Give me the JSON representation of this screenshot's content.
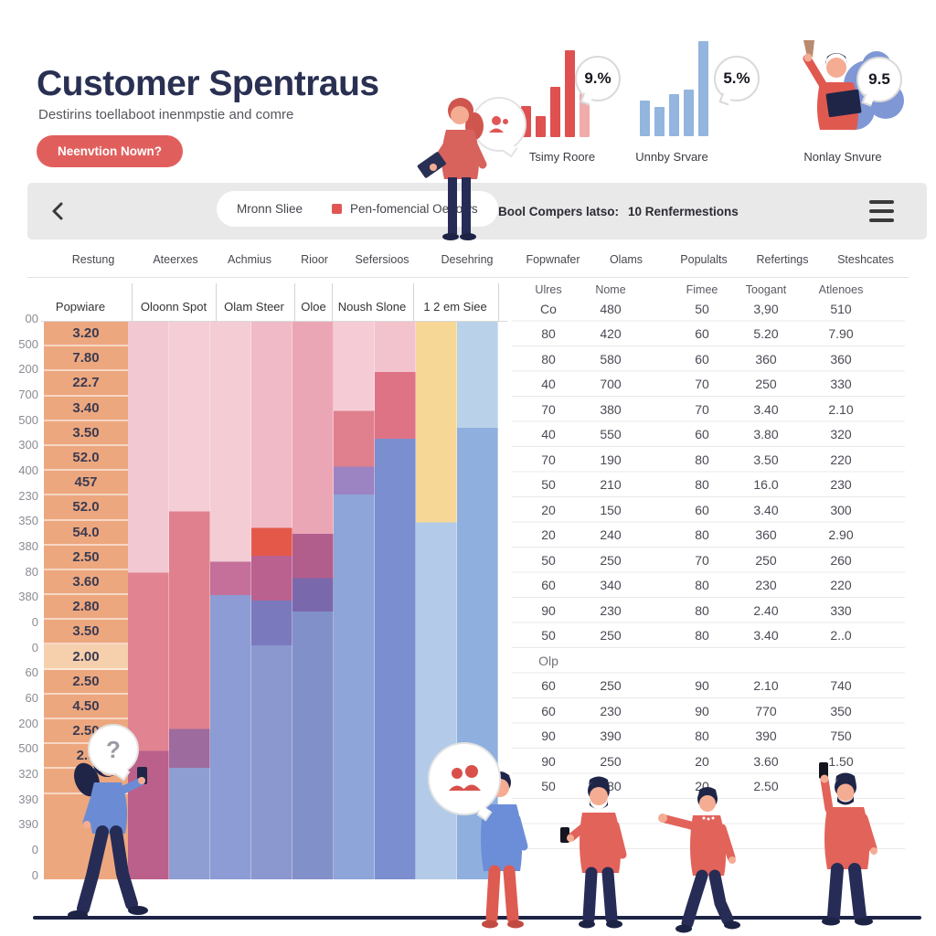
{
  "header": {
    "title": "Customer Spentraus",
    "subtitle": "Destirins toellaboot inenmpstie and comre",
    "cta_label": "Neenvtion Nown?"
  },
  "stats": [
    {
      "value": "9.%",
      "label": "Tsimy Roore",
      "type": "mini-bar-chart",
      "bars": [
        34,
        23,
        55,
        95,
        48
      ],
      "bar_color": "#df5050",
      "last_bar_color": "#f0abab"
    },
    {
      "value": "5.%",
      "label": "Unnby Srvare",
      "type": "mini-bar-chart",
      "bars": [
        39,
        32,
        46,
        51,
        104
      ],
      "bar_color": "#93b5de",
      "last_bar_color": "#93b5de"
    },
    {
      "value": "9.5",
      "label": "Nonlay Snvure",
      "type": "person-illustration"
    }
  ],
  "toolbar": {
    "legend_item1": "Mronn Sliee",
    "legend_item2": "Pen-fomencial Oenows",
    "swatch_color": "#e15654",
    "status_label": "Bool Compers latso:",
    "status_value": "10 Renfermestions"
  },
  "column_headers": [
    "Restung",
    "Ateerxes",
    "Achmius",
    "Rioor",
    "Sefersioos",
    "Desehring",
    "Fopwnafer",
    "Olams",
    "Populalts",
    "Refertings",
    "Steshcates"
  ],
  "chart_subheaders": [
    "Popwiare",
    "Oloonn Spot",
    "Olam Steer",
    "Oloe",
    "Noush Slone",
    "1 2 em Siee"
  ],
  "axis_labels": [
    "00",
    "500",
    "200",
    "700",
    "500",
    "300",
    "400",
    "230",
    "350",
    "380",
    "80",
    "380",
    "0",
    "0",
    "60",
    "60",
    "200",
    "500",
    "320",
    "390",
    "390",
    "0",
    "0"
  ],
  "value_column": [
    "3.20",
    "7.80",
    "22.7",
    "3.40",
    "3.50",
    "52.0",
    "457",
    "52.0",
    "54.0",
    "2.50",
    "3.60",
    "2.80",
    "3.50",
    "2.00",
    "2.50",
    "4.50",
    "2.50",
    "2.9",
    "2."
  ],
  "table": {
    "headers": [
      "Ulres",
      "Nome",
      "Fimee",
      "Toogant",
      "Atlenoes"
    ],
    "rows": [
      [
        "Co",
        "480",
        "50",
        "3,90",
        "510"
      ],
      [
        "80",
        "420",
        "60",
        "5.20",
        "7.90"
      ],
      [
        "80",
        "580",
        "60",
        "360",
        "360"
      ],
      [
        "40",
        "700",
        "70",
        "250",
        "330"
      ],
      [
        "70",
        "380",
        "70",
        "3.40",
        "2.10"
      ],
      [
        "40",
        "550",
        "60",
        "3.80",
        "320"
      ],
      [
        "70",
        "190",
        "80",
        "3.50",
        "220"
      ],
      [
        "50",
        "210",
        "80",
        "16.0",
        "230"
      ],
      [
        "20",
        "150",
        "60",
        "3.40",
        "300"
      ],
      [
        "20",
        "240",
        "80",
        "360",
        "2.90"
      ],
      [
        "50",
        "250",
        "70",
        "250",
        "260"
      ],
      [
        "60",
        "340",
        "80",
        "230",
        "220"
      ],
      [
        "90",
        "230",
        "80",
        "2.40",
        "330"
      ],
      [
        "50",
        "250",
        "80",
        "3.40",
        "2..0"
      ],
      [
        "Olp",
        "",
        "",
        "",
        ""
      ],
      [
        "60",
        "250",
        "90",
        "2.10",
        "740"
      ],
      [
        "60",
        "230",
        "90",
        "770",
        "350"
      ],
      [
        "90",
        "390",
        "80",
        "390",
        "750"
      ],
      [
        "90",
        "250",
        "20",
        "3.60",
        "1.50"
      ],
      [
        "50",
        "280",
        "20",
        "2.50",
        ""
      ]
    ]
  },
  "chart_data": {
    "type": "bar",
    "subtype": "decorative-stacked-columns",
    "title": "Customer Spentraus",
    "legend": [
      "Mronn Sliee",
      "Pen-fomencial Oenows"
    ],
    "mini_charts": [
      {
        "label": "Tsimy Roore",
        "badge": "9.%",
        "values": [
          34,
          23,
          55,
          95,
          48
        ]
      },
      {
        "label": "Unnby Srvare",
        "badge": "5.%",
        "values": [
          39,
          32,
          46,
          51,
          104
        ]
      }
    ],
    "stacked_columns": [
      {
        "segments": [
          {
            "color": "#f2c8d2",
            "to": 45
          },
          {
            "color": "#e18391",
            "to": 77
          },
          {
            "color": "#bb608a",
            "to": 100
          }
        ]
      },
      {
        "segments": [
          {
            "color": "#f4cdd6",
            "to": 34
          },
          {
            "color": "#e0808e",
            "to": 73
          },
          {
            "color": "#9d6b9e",
            "to": 80
          },
          {
            "color": "#8e9ed2",
            "to": 100
          }
        ]
      },
      {
        "segments": [
          {
            "color": "#f4ccd4",
            "to": 43
          },
          {
            "color": "#c4709a",
            "to": 49
          },
          {
            "color": "#8d9cd4",
            "to": 100
          }
        ]
      },
      {
        "segments": [
          {
            "color": "#f0bac6",
            "to": 37
          },
          {
            "color": "#e4584a",
            "to": 42
          },
          {
            "color": "#bb6190",
            "to": 50
          },
          {
            "color": "#7b79bd",
            "to": 58
          },
          {
            "color": "#8b97cf",
            "to": 100
          }
        ]
      },
      {
        "segments": [
          {
            "color": "#eba6b6",
            "to": 38
          },
          {
            "color": "#b25e8d",
            "to": 46
          },
          {
            "color": "#7a68ac",
            "to": 52
          },
          {
            "color": "#8290ca",
            "to": 100
          }
        ]
      },
      {
        "segments": [
          {
            "color": "#f5ccd5",
            "to": 16
          },
          {
            "color": "#e07f8e",
            "to": 26
          },
          {
            "color": "#9c83c1",
            "to": 31
          },
          {
            "color": "#8da5d9",
            "to": 100
          }
        ]
      },
      {
        "segments": [
          {
            "color": "#f3c3cd",
            "to": 9
          },
          {
            "color": "#de7386",
            "to": 21
          },
          {
            "color": "#7b8ecf",
            "to": 100
          }
        ]
      },
      {
        "segments": [
          {
            "color": "#f7d795",
            "to": 36
          },
          {
            "color": "#b3cbe8",
            "to": 100
          }
        ]
      },
      {
        "segments": [
          {
            "color": "#b9d2ea",
            "to": 19
          },
          {
            "color": "#8fb0de",
            "to": 100
          }
        ]
      }
    ]
  },
  "icons": {
    "back": "chevron-left-icon",
    "menu": "hamburger-icon",
    "question": "?",
    "legend_swatch": "red-square-icon"
  }
}
